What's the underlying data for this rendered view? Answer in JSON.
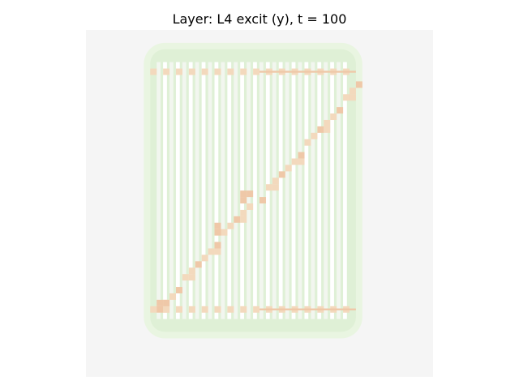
{
  "figure": {
    "title": "Layer: L4 excit (y), t = 100"
  },
  "chart_data": {
    "type": "heatmap",
    "title": "Layer: L4 excit (y), t = 100",
    "colormap": "diverging: green (negative) — near-white (zero) — orange/red (positive)",
    "colors": {
      "background": "#f5f5f5",
      "negative_faint": "#e9f5e1",
      "negative_light": "#dff0d6",
      "near_zero": "#f2f6ef",
      "positive": "#f3d9bd",
      "positive_strong": "#efc8a8",
      "grid_line": "#ffffff"
    },
    "grid": {
      "cols": 54,
      "rows": 54
    },
    "regions": {
      "halo": {
        "col_start": 9,
        "col_end": 43,
        "row_start": 2,
        "row_end": 48,
        "value": -0.06
      },
      "inner": {
        "col_start": 10,
        "col_end": 42,
        "row_start": 3,
        "row_end": 47,
        "value": -0.1
      },
      "top_bar_row": 6,
      "bottom_bar_row": 43,
      "diagonal": {
        "from": [
          11,
          43
        ],
        "to": [
          42,
          8
        ]
      }
    },
    "value_range": [
      -1,
      1
    ]
  }
}
